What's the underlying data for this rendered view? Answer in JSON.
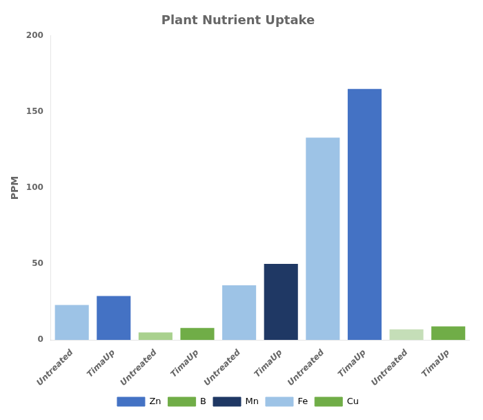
{
  "chart_data": {
    "type": "bar",
    "title": "Plant Nutrient Uptake",
    "ylabel": "PPM",
    "categories": [
      "Untreated",
      "TimaUp",
      "Untreated",
      "TimaUp",
      "Untreated",
      "TimaUp",
      "Untreated",
      "TimaUp",
      "Untreated",
      "TimaUp"
    ],
    "series": [
      {
        "name": "Zn",
        "color": "#4472C4",
        "colors": [
          "#9DC3E6",
          "#4472C4",
          null,
          null,
          null,
          null,
          null,
          null,
          null,
          null
        ],
        "values": [
          23,
          29,
          null,
          null,
          null,
          null,
          null,
          null,
          null,
          null
        ]
      },
      {
        "name": "B",
        "color": "#70AD47",
        "colors": [
          null,
          null,
          "#A9D18E",
          "#70AD47",
          null,
          null,
          null,
          null,
          null,
          null
        ],
        "values": [
          null,
          null,
          5,
          8,
          null,
          null,
          null,
          null,
          null,
          null
        ]
      },
      {
        "name": "Mn",
        "color": "#1F3864",
        "colors": [
          null,
          null,
          null,
          null,
          "#9DC3E6",
          "#1F3864",
          null,
          null,
          null,
          null
        ],
        "values": [
          null,
          null,
          null,
          null,
          36,
          50,
          null,
          null,
          null,
          null
        ]
      },
      {
        "name": "Fe",
        "color": "#9DC3E6",
        "colors": [
          null,
          null,
          null,
          null,
          null,
          null,
          "#9DC3E6",
          "#4472C4",
          null,
          null
        ],
        "values": [
          null,
          null,
          null,
          null,
          null,
          null,
          133,
          165,
          null,
          null
        ]
      },
      {
        "name": "Cu",
        "color": "#70AD47",
        "colors": [
          null,
          null,
          null,
          null,
          null,
          null,
          null,
          null,
          "#C5DEB8",
          "#70AD47"
        ],
        "values": [
          null,
          null,
          null,
          null,
          null,
          null,
          null,
          null,
          7,
          9
        ]
      }
    ],
    "ylim": [
      0,
      200
    ],
    "yticks": [
      0,
      50,
      100,
      150,
      200
    ],
    "grid": false,
    "legend": "bottom"
  }
}
